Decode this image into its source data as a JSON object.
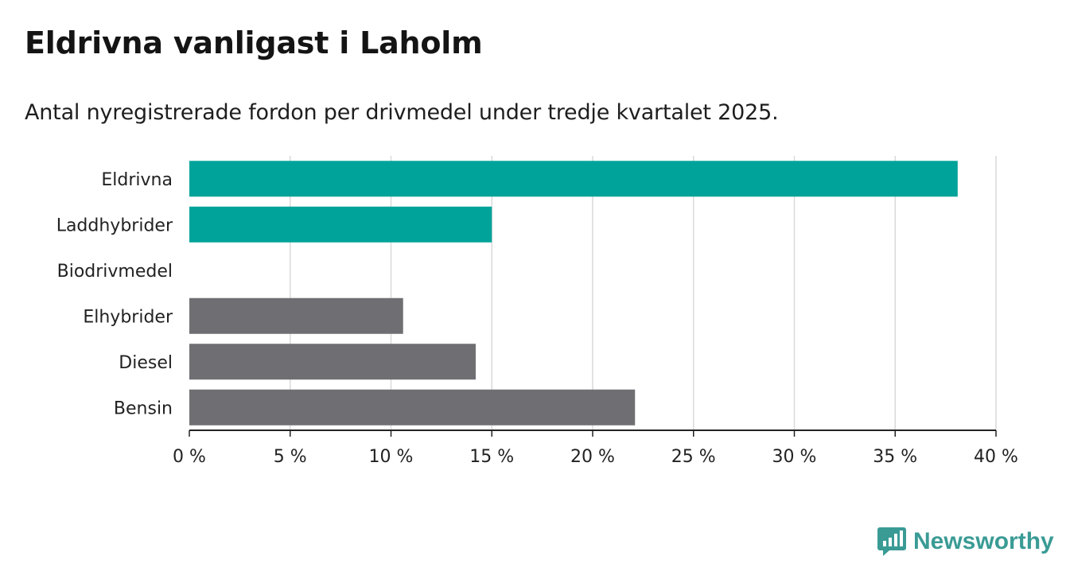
{
  "title": "Eldrivna vanligast i Laholm",
  "subtitle": "Antal nyregistrerade fordon per drivmedel under tredje kvartalet 2025.",
  "brand": {
    "name": "Newsworthy",
    "icon": "newsworthy-chart-icon"
  },
  "colors": {
    "highlight": "#00a39a",
    "neutral": "#6f6e73",
    "grid": "#d9d9d9",
    "axis": "#222222",
    "brand": "#3a9b95"
  },
  "chart_data": {
    "type": "bar",
    "orientation": "horizontal",
    "title": "Eldrivna vanligast i Laholm",
    "subtitle": "Antal nyregistrerade fordon per drivmedel under tredje kvartalet 2025.",
    "xlabel": "",
    "ylabel": "",
    "categories": [
      "Eldrivna",
      "Laddhybrider",
      "Biodrivmedel",
      "Elhybrider",
      "Diesel",
      "Bensin"
    ],
    "values": [
      38.1,
      15.0,
      0,
      10.6,
      14.2,
      22.1
    ],
    "bar_colors": [
      "highlight",
      "highlight",
      "highlight",
      "neutral",
      "neutral",
      "neutral"
    ],
    "xlim": [
      0,
      40
    ],
    "xticks": [
      0,
      5,
      10,
      15,
      20,
      25,
      30,
      35,
      40
    ],
    "xtick_labels": [
      "0 %",
      "5 %",
      "10 %",
      "15 %",
      "20 %",
      "25 %",
      "30 %",
      "35 %",
      "40 %"
    ],
    "grid": true,
    "legend": "none"
  }
}
